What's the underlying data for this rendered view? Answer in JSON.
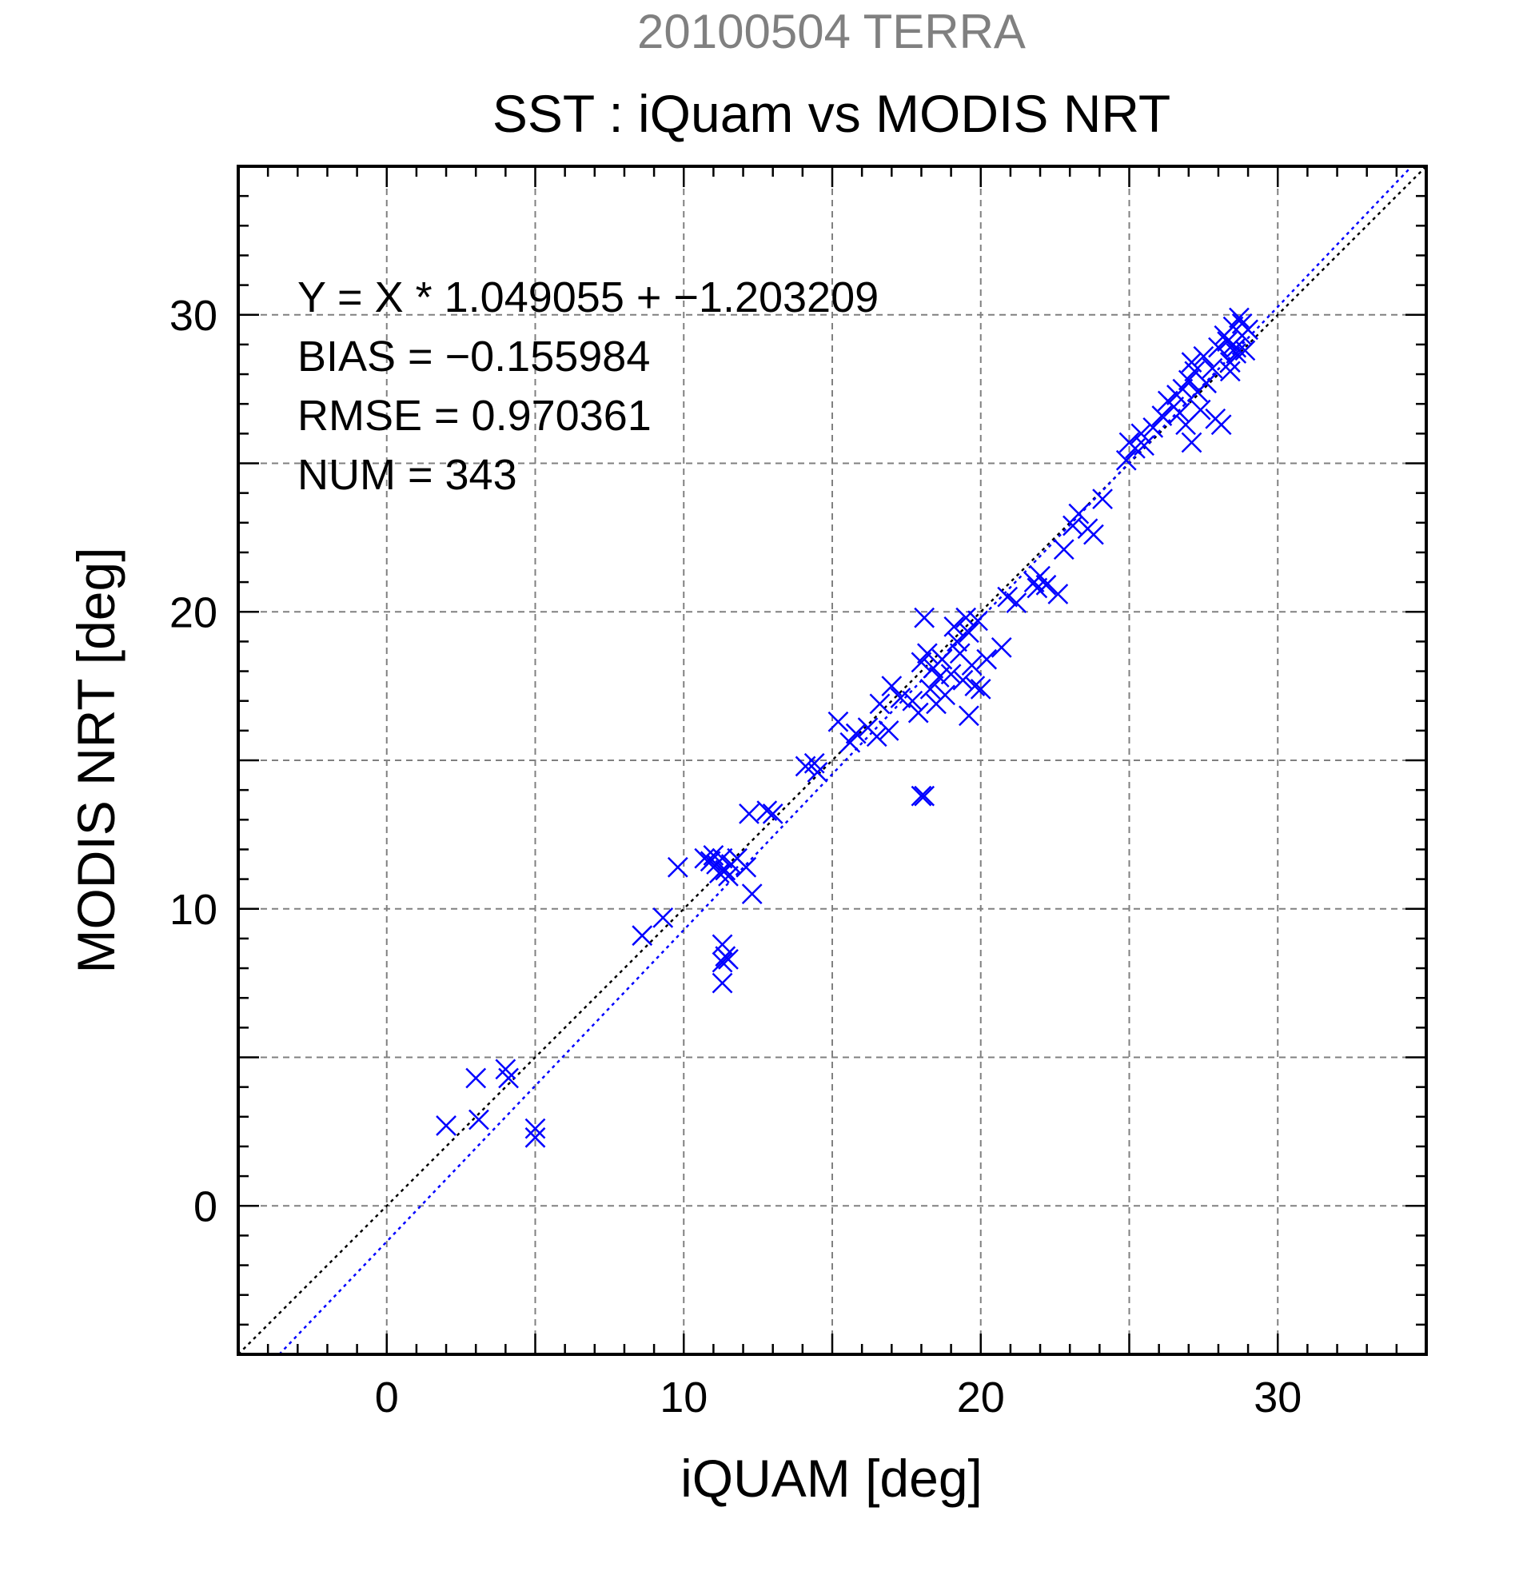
{
  "header": {
    "date_label": "20100504 TERRA",
    "title": "SST : iQuam vs MODIS NRT"
  },
  "colors": {
    "date_label": "#808080",
    "points": "#0000ff",
    "fit_line": "#0000ff",
    "identity_line": "#000000",
    "grid": "#808080",
    "axis": "#000000"
  },
  "stats": {
    "equation": "Y = X * 1.049055 + −1.203209",
    "bias": "BIAS = −0.155984",
    "rmse": "RMSE = 0.970361",
    "num": "NUM = 343"
  },
  "chart_data": {
    "type": "scatter",
    "xlabel": "iQUAM [deg]",
    "ylabel": "MODIS NRT [deg]",
    "xlim": [
      -5,
      35
    ],
    "ylim": [
      -5,
      35
    ],
    "xticks": [
      0,
      10,
      20,
      30
    ],
    "yticks": [
      0,
      10,
      20,
      30
    ],
    "grid": true,
    "marker": "x",
    "reference_lines": [
      {
        "kind": "identity",
        "slope": 1,
        "intercept": 0,
        "style": "dotted",
        "color": "#000000"
      },
      {
        "kind": "fit",
        "slope": 1.049055,
        "intercept": -1.203209,
        "style": "dotted",
        "color": "#0000ff"
      }
    ],
    "points": [
      [
        2.0,
        2.7
      ],
      [
        3.0,
        4.3
      ],
      [
        3.1,
        2.9
      ],
      [
        4.0,
        4.6
      ],
      [
        4.1,
        4.3
      ],
      [
        5.0,
        2.6
      ],
      [
        5.0,
        2.3
      ],
      [
        8.6,
        9.1
      ],
      [
        9.3,
        9.7
      ],
      [
        9.8,
        11.4
      ],
      [
        10.7,
        11.7
      ],
      [
        10.9,
        11.6
      ],
      [
        11.0,
        11.8
      ],
      [
        11.1,
        11.5
      ],
      [
        11.2,
        11.2
      ],
      [
        11.3,
        11.7
      ],
      [
        11.4,
        11.3
      ],
      [
        11.5,
        11.1
      ],
      [
        11.6,
        11.5
      ],
      [
        11.8,
        11.7
      ],
      [
        12.1,
        11.4
      ],
      [
        12.3,
        10.5
      ],
      [
        11.3,
        8.8
      ],
      [
        11.4,
        8.4
      ],
      [
        11.3,
        8.2
      ],
      [
        11.5,
        8.3
      ],
      [
        11.3,
        7.5
      ],
      [
        12.2,
        13.2
      ],
      [
        12.8,
        13.3
      ],
      [
        13.0,
        13.2
      ],
      [
        14.1,
        14.8
      ],
      [
        14.4,
        14.9
      ],
      [
        14.5,
        14.6
      ],
      [
        15.2,
        16.3
      ],
      [
        15.6,
        15.6
      ],
      [
        15.8,
        15.9
      ],
      [
        16.2,
        16.1
      ],
      [
        16.5,
        15.8
      ],
      [
        16.6,
        16.9
      ],
      [
        16.9,
        16.0
      ],
      [
        17.0,
        17.5
      ],
      [
        17.3,
        17.1
      ],
      [
        17.7,
        17.0
      ],
      [
        17.9,
        16.6
      ],
      [
        18.0,
        18.3
      ],
      [
        18.1,
        19.8
      ],
      [
        18.2,
        18.6
      ],
      [
        18.3,
        17.4
      ],
      [
        18.4,
        18.1
      ],
      [
        18.5,
        16.9
      ],
      [
        18.6,
        17.8
      ],
      [
        18.7,
        18.4
      ],
      [
        18.8,
        17.2
      ],
      [
        19.0,
        17.9
      ],
      [
        19.1,
        19.5
      ],
      [
        19.2,
        19.0
      ],
      [
        19.3,
        18.6
      ],
      [
        19.4,
        17.7
      ],
      [
        19.5,
        19.8
      ],
      [
        19.6,
        19.3
      ],
      [
        19.7,
        18.2
      ],
      [
        19.8,
        17.5
      ],
      [
        19.9,
        19.7
      ],
      [
        20.0,
        17.4
      ],
      [
        20.2,
        18.4
      ],
      [
        19.6,
        16.5
      ],
      [
        18.1,
        13.8
      ],
      [
        18.0,
        13.8
      ],
      [
        20.7,
        18.8
      ],
      [
        20.9,
        20.5
      ],
      [
        21.2,
        20.3
      ],
      [
        21.8,
        21.0
      ],
      [
        21.9,
        20.8
      ],
      [
        22.0,
        21.2
      ],
      [
        22.2,
        20.9
      ],
      [
        22.6,
        20.6
      ],
      [
        22.8,
        22.1
      ],
      [
        23.1,
        22.9
      ],
      [
        23.3,
        23.3
      ],
      [
        23.6,
        22.8
      ],
      [
        23.8,
        22.6
      ],
      [
        24.1,
        23.8
      ],
      [
        24.9,
        25.1
      ],
      [
        25.0,
        25.7
      ],
      [
        25.2,
        25.5
      ],
      [
        25.4,
        26.0
      ],
      [
        25.5,
        25.6
      ],
      [
        25.8,
        26.2
      ],
      [
        26.1,
        26.6
      ],
      [
        26.3,
        27.1
      ],
      [
        26.5,
        26.9
      ],
      [
        26.6,
        27.3
      ],
      [
        26.7,
        26.7
      ],
      [
        26.8,
        27.5
      ],
      [
        26.9,
        26.3
      ],
      [
        27.0,
        27.8
      ],
      [
        27.1,
        28.4
      ],
      [
        27.1,
        25.7
      ],
      [
        27.2,
        28.1
      ],
      [
        27.3,
        27.4
      ],
      [
        27.4,
        26.8
      ],
      [
        27.5,
        28.6
      ],
      [
        27.6,
        27.7
      ],
      [
        27.8,
        28.2
      ],
      [
        27.9,
        26.5
      ],
      [
        28.0,
        28.9
      ],
      [
        28.1,
        26.3
      ],
      [
        28.3,
        29.1
      ],
      [
        28.4,
        28.4
      ],
      [
        28.5,
        29.6
      ],
      [
        28.6,
        28.7
      ],
      [
        28.7,
        29.9
      ],
      [
        28.8,
        29.3
      ],
      [
        28.9,
        28.8
      ],
      [
        29.0,
        29.5
      ],
      [
        28.4,
        28.1
      ],
      [
        28.6,
        28.9
      ],
      [
        28.8,
        29.7
      ],
      [
        28.2,
        29.3
      ],
      [
        28.5,
        29.0
      ]
    ]
  }
}
